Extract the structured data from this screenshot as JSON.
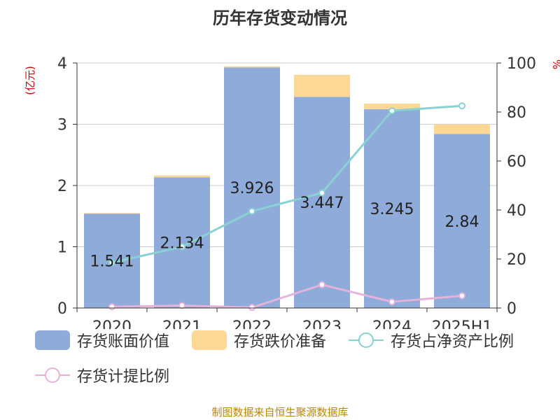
{
  "title": "历年存货变动情况",
  "source": "制图数据来自恒生聚源数据库",
  "colors": {
    "book_value": "#8eabd9",
    "impairment": "#fdd795",
    "net_asset_ratio": "#89d1d3",
    "provision_ratio": "#e5b3d9",
    "axis_unit": "#cc0000"
  },
  "chart_data": {
    "type": "bar",
    "title": "历年存货变动情况",
    "categories": [
      "2020",
      "2021",
      "2022",
      "2023",
      "2024",
      "2025H1"
    ],
    "y_left_label": "(亿元)",
    "y_right_label": "%",
    "ylim_left": [
      0,
      4
    ],
    "ylim_right": [
      0,
      100
    ],
    "y_left_ticks": [
      0,
      1,
      2,
      3,
      4
    ],
    "y_right_ticks": [
      0,
      20,
      40,
      60,
      80,
      100
    ],
    "grid": true,
    "legend_position": "bottom",
    "series": [
      {
        "name": "存货账面价值",
        "type": "bar",
        "axis": "left",
        "values": [
          1.541,
          2.134,
          3.926,
          3.447,
          3.245,
          2.84
        ],
        "labels": [
          "1.541",
          "2.134",
          "3.926",
          "3.447",
          "3.245",
          "2.84"
        ]
      },
      {
        "name": "存货跌价准备",
        "type": "bar-stacked",
        "axis": "left",
        "values": [
          0.01,
          0.03,
          0.02,
          0.36,
          0.09,
          0.16
        ]
      },
      {
        "name": "存货占净资产比例",
        "type": "line",
        "axis": "right",
        "values": [
          18.5,
          25,
          39.5,
          47,
          80.5,
          82.5
        ]
      },
      {
        "name": "存货计提比例",
        "type": "line",
        "axis": "right",
        "values": [
          0.5,
          1.0,
          0.2,
          9.5,
          2.5,
          5.0
        ]
      }
    ]
  }
}
